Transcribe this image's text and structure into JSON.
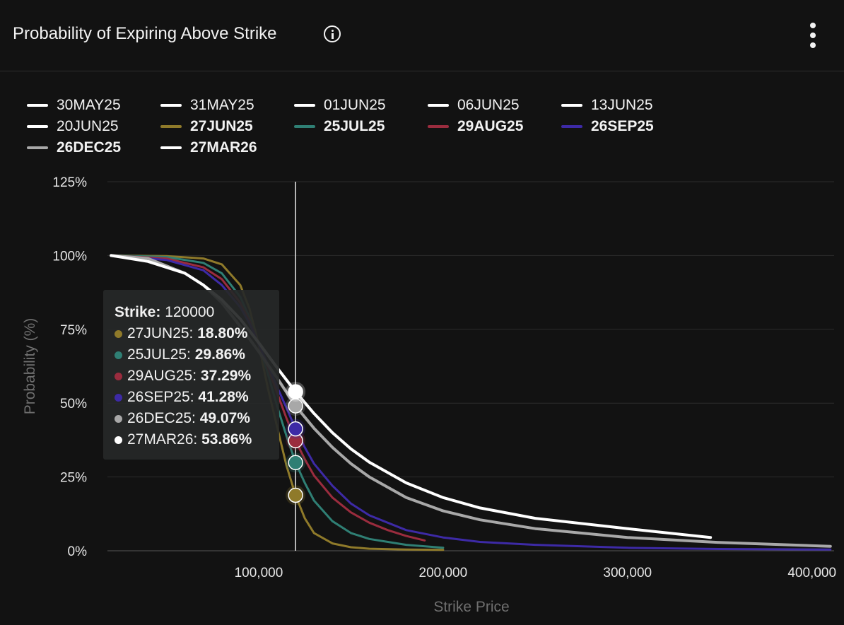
{
  "header": {
    "title": "Probability of Expiring Above Strike"
  },
  "legend": [
    {
      "label": "30MAY25",
      "color": "#ffffff",
      "bold": false
    },
    {
      "label": "31MAY25",
      "color": "#ffffff",
      "bold": false
    },
    {
      "label": "01JUN25",
      "color": "#ffffff",
      "bold": false
    },
    {
      "label": "06JUN25",
      "color": "#ffffff",
      "bold": false
    },
    {
      "label": "13JUN25",
      "color": "#ffffff",
      "bold": false
    },
    {
      "label": "20JUN25",
      "color": "#ffffff",
      "bold": false
    },
    {
      "label": "27JUN25",
      "color": "#8f7a2a",
      "bold": true
    },
    {
      "label": "25JUL25",
      "color": "#2f7f74",
      "bold": true
    },
    {
      "label": "29AUG25",
      "color": "#9a2c3e",
      "bold": true
    },
    {
      "label": "26SEP25",
      "color": "#3d2aa6",
      "bold": true
    },
    {
      "label": "26DEC25",
      "color": "#a8a8a8",
      "bold": true
    },
    {
      "label": "27MAR26",
      "color": "#ffffff",
      "bold": true
    }
  ],
  "tooltip": {
    "strike_label": "Strike:",
    "strike_value": "120000",
    "rows": [
      {
        "label": "27JUN25:",
        "value": "18.80%",
        "color": "#8f7a2a"
      },
      {
        "label": "25JUL25:",
        "value": "29.86%",
        "color": "#2f7f74"
      },
      {
        "label": "29AUG25:",
        "value": "37.29%",
        "color": "#9a2c3e"
      },
      {
        "label": "26SEP25:",
        "value": "41.28%",
        "color": "#3d2aa6"
      },
      {
        "label": "26DEC25:",
        "value": "49.07%",
        "color": "#a8a8a8"
      },
      {
        "label": "27MAR26:",
        "value": "53.86%",
        "color": "#ffffff"
      }
    ]
  },
  "chart_data": {
    "type": "line",
    "xlabel": "Strike Price",
    "ylabel": "Probability (%)",
    "xlim": [
      18000,
      412000
    ],
    "ylim": [
      0,
      125
    ],
    "x_ticks": [
      100000,
      200000,
      300000,
      400000
    ],
    "x_tick_labels": [
      "100,000",
      "200,000",
      "300,000",
      "400,000"
    ],
    "y_ticks": [
      0,
      25,
      50,
      75,
      100,
      125
    ],
    "y_tick_labels": [
      "0%",
      "25%",
      "50%",
      "75%",
      "100%",
      "125%"
    ],
    "grid": true,
    "crosshair_x": 120000,
    "series": [
      {
        "name": "27JUN25",
        "color": "#8f7a2a",
        "width": 3,
        "x": [
          20000,
          50000,
          70000,
          80000,
          90000,
          95000,
          100000,
          105000,
          110000,
          115000,
          120000,
          125000,
          130000,
          140000,
          150000,
          160000,
          180000,
          200000
        ],
        "y": [
          100,
          99.8,
          99,
          97,
          90,
          82,
          70,
          55,
          42,
          29,
          18.8,
          11,
          6,
          2.5,
          1.2,
          0.7,
          0.4,
          0.3
        ]
      },
      {
        "name": "25JUL25",
        "color": "#2f7f74",
        "width": 3,
        "x": [
          20000,
          50000,
          70000,
          80000,
          90000,
          95000,
          100000,
          105000,
          110000,
          115000,
          120000,
          125000,
          130000,
          140000,
          150000,
          160000,
          180000,
          200000
        ],
        "y": [
          100,
          99.5,
          97.5,
          94,
          86,
          79,
          70,
          60,
          49,
          39,
          29.86,
          23,
          17,
          10,
          6,
          4,
          2,
          1
        ]
      },
      {
        "name": "29AUG25",
        "color": "#9a2c3e",
        "width": 3,
        "x": [
          20000,
          50000,
          70000,
          80000,
          90000,
          95000,
          100000,
          105000,
          110000,
          115000,
          120000,
          125000,
          130000,
          140000,
          150000,
          160000,
          170000,
          180000,
          190000
        ],
        "y": [
          100,
          99,
          96,
          92,
          84,
          78,
          70,
          62,
          53.5,
          45,
          37.29,
          31,
          25.5,
          18,
          13,
          9.5,
          7,
          5,
          3.5
        ]
      },
      {
        "name": "26SEP25",
        "color": "#3d2aa6",
        "width": 3,
        "x": [
          20000,
          50000,
          70000,
          80000,
          90000,
          95000,
          100000,
          105000,
          110000,
          115000,
          120000,
          125000,
          130000,
          140000,
          150000,
          160000,
          180000,
          200000,
          220000,
          250000,
          300000,
          350000,
          410000
        ],
        "y": [
          100,
          98.5,
          95,
          90,
          82.5,
          77,
          70,
          63,
          55.5,
          48.5,
          41.28,
          35,
          29.5,
          22,
          16,
          12,
          7,
          4.5,
          3,
          2,
          1,
          0.6,
          0.4
        ]
      },
      {
        "name": "26DEC25",
        "color": "#a8a8a8",
        "width": 4,
        "x": [
          20000,
          40000,
          60000,
          70000,
          80000,
          90000,
          100000,
          110000,
          120000,
          130000,
          140000,
          150000,
          160000,
          180000,
          200000,
          220000,
          250000,
          300000,
          350000,
          410000
        ],
        "y": [
          100,
          99,
          94,
          90,
          84,
          76,
          67.5,
          58.5,
          49.07,
          41.5,
          35,
          29.5,
          25,
          18,
          13.5,
          10.5,
          7.5,
          4.5,
          2.8,
          1.5
        ]
      },
      {
        "name": "27MAR26",
        "color": "#ffffff",
        "width": 4,
        "x": [
          20000,
          40000,
          60000,
          70000,
          80000,
          90000,
          100000,
          110000,
          120000,
          130000,
          140000,
          150000,
          160000,
          180000,
          200000,
          220000,
          250000,
          300000,
          345000
        ],
        "y": [
          100,
          98,
          94,
          90,
          85,
          78.5,
          70.5,
          62,
          53.86,
          46.5,
          40,
          34.5,
          30,
          23,
          18,
          14.5,
          11,
          7.5,
          4.5
        ]
      }
    ]
  }
}
